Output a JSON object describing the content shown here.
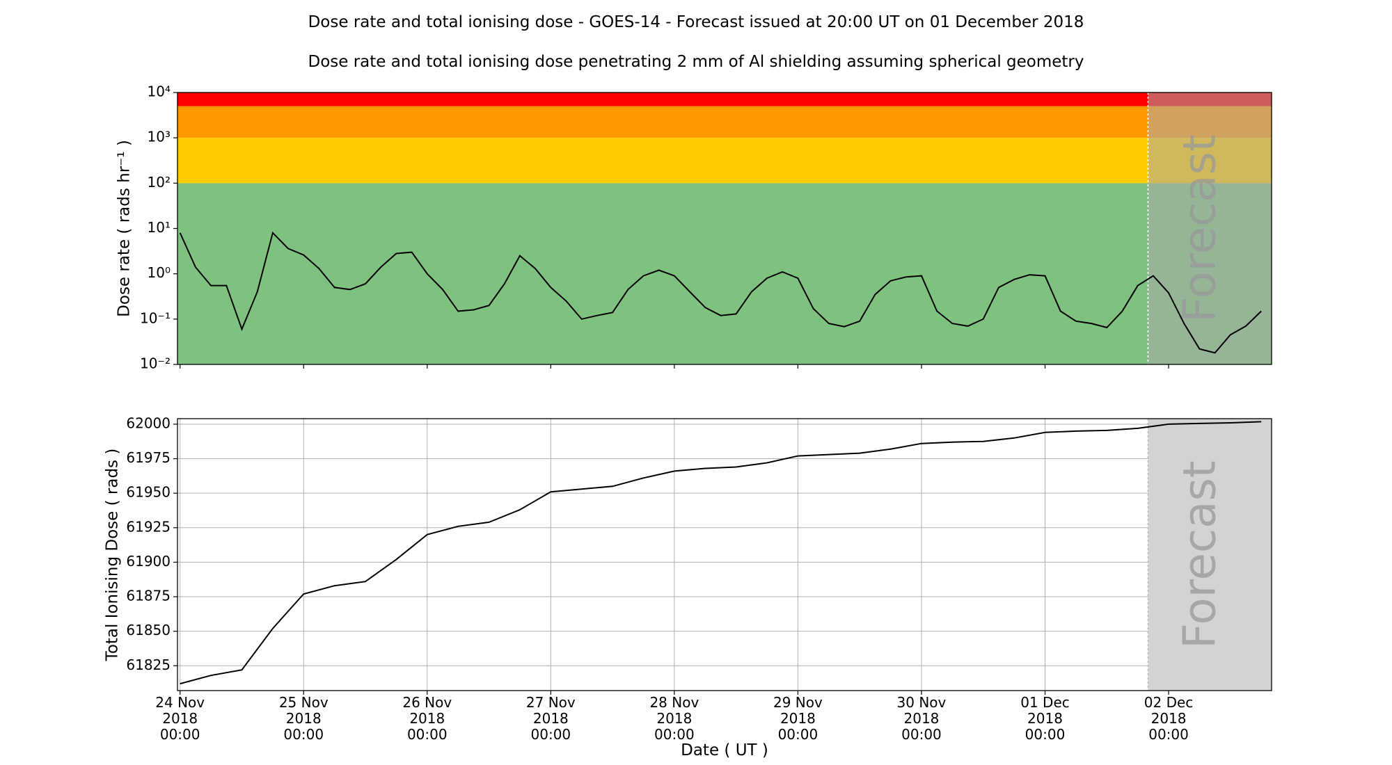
{
  "chart_data": [
    {
      "type": "line",
      "yscale": "log",
      "title": "Dose rate and total ionising dose - GOES-14 - Forecast issued at 20:00 UT on 01 December 2018",
      "subtitle": "Dose rate and total ionising dose penetrating 2 mm of Al shielding assuming spherical geometry",
      "ylabel": "Dose rate ( rads hr⁻¹ )",
      "xlim": [
        "2018-11-23 23:30",
        "2018-12-02 20:00"
      ],
      "xticks": [
        "2018-11-24 00:00",
        "2018-11-25 00:00",
        "2018-11-26 00:00",
        "2018-11-27 00:00",
        "2018-11-28 00:00",
        "2018-11-29 00:00",
        "2018-11-30 00:00",
        "2018-12-01 00:00",
        "2018-12-02 00:00"
      ],
      "ylim": [
        0.01,
        10000
      ],
      "yticks": [
        {
          "value": 0.01,
          "label": "10⁻²"
        },
        {
          "value": 0.1,
          "label": "10⁻¹"
        },
        {
          "value": 1,
          "label": "10⁰"
        },
        {
          "value": 10,
          "label": "10¹"
        },
        {
          "value": 100,
          "label": "10²"
        },
        {
          "value": 1000,
          "label": "10³"
        },
        {
          "value": 10000,
          "label": "10⁴"
        }
      ],
      "bands": [
        {
          "from": 0.01,
          "to": 100,
          "color": "#7fc17f"
        },
        {
          "from": 100,
          "to": 1000,
          "color": "#ffcc00"
        },
        {
          "from": 1000,
          "to": 5000,
          "color": "#ff9900"
        },
        {
          "from": 5000,
          "to": 10000,
          "color": "#ff0000"
        }
      ],
      "forecast_start": "2018-12-01 20:00",
      "forecast_label": "Forecast",
      "color": "#000000",
      "x": [
        "2018-11-24 00:00",
        "2018-11-24 03:00",
        "2018-11-24 06:00",
        "2018-11-24 09:00",
        "2018-11-24 12:00",
        "2018-11-24 15:00",
        "2018-11-24 18:00",
        "2018-11-24 21:00",
        "2018-11-25 00:00",
        "2018-11-25 03:00",
        "2018-11-25 06:00",
        "2018-11-25 09:00",
        "2018-11-25 12:00",
        "2018-11-25 15:00",
        "2018-11-25 18:00",
        "2018-11-25 21:00",
        "2018-11-26 00:00",
        "2018-11-26 03:00",
        "2018-11-26 06:00",
        "2018-11-26 09:00",
        "2018-11-26 12:00",
        "2018-11-26 15:00",
        "2018-11-26 18:00",
        "2018-11-26 21:00",
        "2018-11-27 00:00",
        "2018-11-27 03:00",
        "2018-11-27 06:00",
        "2018-11-27 09:00",
        "2018-11-27 12:00",
        "2018-11-27 15:00",
        "2018-11-27 18:00",
        "2018-11-27 21:00",
        "2018-11-28 00:00",
        "2018-11-28 03:00",
        "2018-11-28 06:00",
        "2018-11-28 09:00",
        "2018-11-28 12:00",
        "2018-11-28 15:00",
        "2018-11-28 18:00",
        "2018-11-28 21:00",
        "2018-11-29 00:00",
        "2018-11-29 03:00",
        "2018-11-29 06:00",
        "2018-11-29 09:00",
        "2018-11-29 12:00",
        "2018-11-29 15:00",
        "2018-11-29 18:00",
        "2018-11-29 21:00",
        "2018-11-30 00:00",
        "2018-11-30 03:00",
        "2018-11-30 06:00",
        "2018-11-30 09:00",
        "2018-11-30 12:00",
        "2018-11-30 15:00",
        "2018-11-30 18:00",
        "2018-11-30 21:00",
        "2018-12-01 00:00",
        "2018-12-01 03:00",
        "2018-12-01 06:00",
        "2018-12-01 09:00",
        "2018-12-01 12:00",
        "2018-12-01 15:00",
        "2018-12-01 18:00",
        "2018-12-01 21:00",
        "2018-12-02 00:00",
        "2018-12-02 03:00",
        "2018-12-02 06:00",
        "2018-12-02 09:00",
        "2018-12-02 12:00",
        "2018-12-02 15:00",
        "2018-12-02 18:00"
      ],
      "values": [
        8,
        1.4,
        0.55,
        0.55,
        0.06,
        0.4,
        8,
        3.6,
        2.6,
        1.3,
        0.5,
        0.45,
        0.6,
        1.4,
        2.8,
        3.0,
        1.0,
        0.45,
        0.15,
        0.16,
        0.2,
        0.6,
        2.5,
        1.3,
        0.5,
        0.25,
        0.1,
        0.12,
        0.14,
        0.45,
        0.9,
        1.2,
        0.9,
        0.4,
        0.18,
        0.12,
        0.13,
        0.4,
        0.8,
        1.1,
        0.8,
        0.17,
        0.08,
        0.068,
        0.09,
        0.35,
        0.7,
        0.85,
        0.9,
        0.15,
        0.08,
        0.07,
        0.1,
        0.5,
        0.75,
        0.95,
        0.9,
        0.15,
        0.09,
        0.08,
        0.065,
        0.15,
        0.55,
        0.9,
        0.38,
        0.08,
        0.022,
        0.018,
        0.045,
        0.07,
        0.15
      ]
    },
    {
      "type": "line",
      "grid": true,
      "ylabel": "Total Ionising Dose ( rads )",
      "xlabel": "Date ( UT )",
      "xlim": [
        "2018-11-23 23:30",
        "2018-12-02 20:00"
      ],
      "xticks": [
        {
          "value": "2018-11-24 00:00",
          "label": "24 Nov\n2018\n00:00"
        },
        {
          "value": "2018-11-25 00:00",
          "label": "25 Nov\n2018\n00:00"
        },
        {
          "value": "2018-11-26 00:00",
          "label": "26 Nov\n2018\n00:00"
        },
        {
          "value": "2018-11-27 00:00",
          "label": "27 Nov\n2018\n00:00"
        },
        {
          "value": "2018-11-28 00:00",
          "label": "28 Nov\n2018\n00:00"
        },
        {
          "value": "2018-11-29 00:00",
          "label": "29 Nov\n2018\n00:00"
        },
        {
          "value": "2018-11-30 00:00",
          "label": "30 Nov\n2018\n00:00"
        },
        {
          "value": "2018-12-01 00:00",
          "label": "01 Dec\n2018\n00:00"
        },
        {
          "value": "2018-12-02 00:00",
          "label": "02 Dec\n2018\n00:00"
        }
      ],
      "ylim": [
        61807,
        62004
      ],
      "yticks": [
        61825,
        61850,
        61875,
        61900,
        61925,
        61950,
        61975,
        62000
      ],
      "forecast_start": "2018-12-01 20:00",
      "forecast_label": "Forecast",
      "color": "#000000",
      "x": [
        "2018-11-24 00:00",
        "2018-11-24 06:00",
        "2018-11-24 12:00",
        "2018-11-24 18:00",
        "2018-11-25 00:00",
        "2018-11-25 06:00",
        "2018-11-25 12:00",
        "2018-11-25 18:00",
        "2018-11-26 00:00",
        "2018-11-26 06:00",
        "2018-11-26 12:00",
        "2018-11-26 18:00",
        "2018-11-27 00:00",
        "2018-11-27 06:00",
        "2018-11-27 12:00",
        "2018-11-27 18:00",
        "2018-11-28 00:00",
        "2018-11-28 06:00",
        "2018-11-28 12:00",
        "2018-11-28 18:00",
        "2018-11-29 00:00",
        "2018-11-29 06:00",
        "2018-11-29 12:00",
        "2018-11-29 18:00",
        "2018-11-30 00:00",
        "2018-11-30 06:00",
        "2018-11-30 12:00",
        "2018-11-30 18:00",
        "2018-12-01 00:00",
        "2018-12-01 06:00",
        "2018-12-01 12:00",
        "2018-12-01 18:00",
        "2018-12-02 00:00",
        "2018-12-02 06:00",
        "2018-12-02 12:00",
        "2018-12-02 18:00"
      ],
      "values": [
        61812,
        61818,
        61822,
        61852,
        61877,
        61883,
        61886,
        61902,
        61920,
        61926,
        61929,
        61938,
        61951,
        61953,
        61955,
        61961,
        61966,
        61968,
        61969,
        61972,
        61977,
        61978,
        61979,
        61982,
        61986,
        61987,
        61987.5,
        61990,
        61994,
        61995,
        61995.5,
        61997,
        62000,
        62000.5,
        62001,
        62001.8
      ]
    }
  ]
}
